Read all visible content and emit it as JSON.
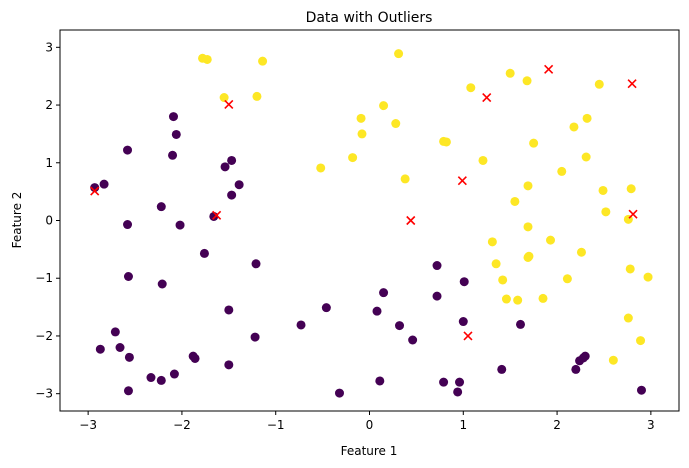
{
  "chart_data": {
    "type": "scatter",
    "title": "Data with Outliers",
    "xlabel": "Feature 1",
    "ylabel": "Feature 2",
    "xlim": [
      -3.3,
      3.3
    ],
    "ylim": [
      -3.3,
      3.3
    ],
    "xticks": [
      -3,
      -2,
      -1,
      0,
      1,
      2,
      3
    ],
    "yticks": [
      -3,
      -2,
      -1,
      0,
      1,
      2,
      3
    ],
    "grid": false,
    "legend": "none",
    "series": [
      {
        "class": "cluster-a",
        "marker": "circle",
        "color": "#440154",
        "points": [
          [
            -2.58,
            1.22
          ],
          [
            -2.83,
            0.63
          ],
          [
            -2.93,
            0.57
          ],
          [
            -2.58,
            -0.07
          ],
          [
            -2.57,
            -0.97
          ],
          [
            -2.87,
            -2.23
          ],
          [
            -2.71,
            -1.93
          ],
          [
            -2.66,
            -2.2
          ],
          [
            -2.56,
            -2.37
          ],
          [
            -2.57,
            -2.95
          ],
          [
            -2.33,
            -2.72
          ],
          [
            -2.22,
            -2.77
          ],
          [
            -2.22,
            0.24
          ],
          [
            -2.21,
            -1.1
          ],
          [
            -2.08,
            -2.66
          ],
          [
            -2.09,
            1.8
          ],
          [
            -2.06,
            1.49
          ],
          [
            -2.1,
            1.13
          ],
          [
            -2.02,
            -0.08
          ],
          [
            -1.88,
            -2.35
          ],
          [
            -1.86,
            -2.39
          ],
          [
            -1.76,
            -0.57
          ],
          [
            -1.66,
            0.07
          ],
          [
            -1.54,
            0.93
          ],
          [
            -1.47,
            1.04
          ],
          [
            -1.47,
            0.44
          ],
          [
            -1.39,
            0.62
          ],
          [
            -1.5,
            -1.55
          ],
          [
            -1.5,
            -2.5
          ],
          [
            -1.21,
            -0.75
          ],
          [
            -1.22,
            -2.02
          ],
          [
            -0.73,
            -1.81
          ],
          [
            -0.46,
            -1.51
          ],
          [
            -0.32,
            -2.99
          ],
          [
            0.08,
            -1.57
          ],
          [
            0.11,
            -2.78
          ],
          [
            0.15,
            -1.25
          ],
          [
            0.32,
            -1.82
          ],
          [
            0.46,
            -2.07
          ],
          [
            0.72,
            -0.78
          ],
          [
            0.72,
            -1.31
          ],
          [
            0.79,
            -2.8
          ],
          [
            0.94,
            -2.97
          ],
          [
            0.96,
            -2.8
          ],
          [
            1.01,
            -1.06
          ],
          [
            1.0,
            -1.75
          ],
          [
            1.41,
            -2.58
          ],
          [
            1.61,
            -1.8
          ],
          [
            2.2,
            -2.58
          ],
          [
            2.24,
            -2.43
          ],
          [
            2.3,
            -2.35
          ],
          [
            2.28,
            -2.38
          ],
          [
            2.9,
            -2.94
          ]
        ]
      },
      {
        "class": "cluster-b",
        "marker": "circle",
        "color": "#fde725",
        "points": [
          [
            -1.78,
            2.81
          ],
          [
            -1.73,
            2.79
          ],
          [
            -1.55,
            2.13
          ],
          [
            -1.2,
            2.15
          ],
          [
            -1.14,
            2.76
          ],
          [
            -0.52,
            0.91
          ],
          [
            -0.18,
            1.09
          ],
          [
            -0.09,
            1.77
          ],
          [
            -0.08,
            1.5
          ],
          [
            0.15,
            1.99
          ],
          [
            0.28,
            1.68
          ],
          [
            0.31,
            2.89
          ],
          [
            0.38,
            0.72
          ],
          [
            0.79,
            1.37
          ],
          [
            0.82,
            1.36
          ],
          [
            1.08,
            2.3
          ],
          [
            1.21,
            1.04
          ],
          [
            1.31,
            -0.37
          ],
          [
            1.35,
            -0.75
          ],
          [
            1.42,
            -1.03
          ],
          [
            1.46,
            -1.36
          ],
          [
            1.5,
            2.55
          ],
          [
            1.55,
            0.33
          ],
          [
            1.58,
            -1.38
          ],
          [
            1.68,
            2.42
          ],
          [
            1.69,
            0.6
          ],
          [
            1.69,
            -0.11
          ],
          [
            1.7,
            -0.62
          ],
          [
            1.69,
            -0.64
          ],
          [
            1.75,
            1.34
          ],
          [
            1.85,
            -1.35
          ],
          [
            1.93,
            -0.34
          ],
          [
            2.05,
            0.85
          ],
          [
            2.11,
            -1.01
          ],
          [
            2.18,
            1.62
          ],
          [
            2.26,
            -0.55
          ],
          [
            2.31,
            1.1
          ],
          [
            2.32,
            1.77
          ],
          [
            2.45,
            2.36
          ],
          [
            2.49,
            0.52
          ],
          [
            2.52,
            0.15
          ],
          [
            2.6,
            -2.42
          ],
          [
            2.76,
            -1.69
          ],
          [
            2.76,
            0.02
          ],
          [
            2.78,
            -0.84
          ],
          [
            2.79,
            0.55
          ],
          [
            2.89,
            -2.08
          ],
          [
            2.97,
            -0.98
          ]
        ]
      },
      {
        "class": "outliers",
        "marker": "x",
        "color": "#ff0000",
        "points": [
          [
            -2.93,
            0.51
          ],
          [
            -1.63,
            0.09
          ],
          [
            -1.5,
            2.01
          ],
          [
            0.44,
            0.0
          ],
          [
            0.99,
            0.69
          ],
          [
            1.05,
            -2.0
          ],
          [
            1.25,
            2.13
          ],
          [
            1.91,
            2.62
          ],
          [
            2.8,
            2.37
          ],
          [
            2.81,
            0.11
          ]
        ]
      }
    ]
  }
}
